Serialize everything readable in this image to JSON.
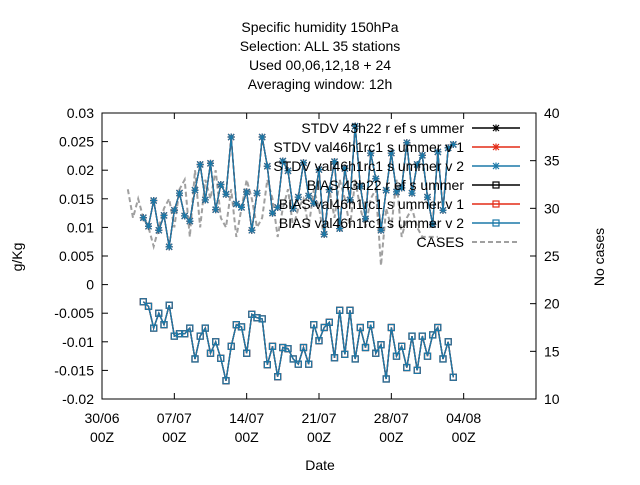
{
  "chart_data": {
    "type": "line",
    "title_lines": [
      "Specific humidity 150hPa",
      "Selection: ALL     35 stations",
      "Used  00,06,12,18  + 24",
      "Averaging window: 12h"
    ],
    "xlabel": "Date",
    "ylabel": "g/Kg",
    "y2label": "No cases",
    "xlim": [
      0,
      42
    ],
    "ylim": [
      -0.02,
      0.03
    ],
    "y2lim": [
      10,
      40
    ],
    "x_ticks": [
      0,
      7,
      14,
      21,
      28,
      35
    ],
    "x_tick_labels": [
      [
        "30/06",
        "00Z"
      ],
      [
        "07/07",
        "00Z"
      ],
      [
        "14/07",
        "00Z"
      ],
      [
        "21/07",
        "00Z"
      ],
      [
        "28/07",
        "00Z"
      ],
      [
        "04/08",
        "00Z"
      ]
    ],
    "y_ticks": [
      -0.02,
      -0.015,
      -0.01,
      -0.005,
      0,
      0.005,
      0.01,
      0.015,
      0.02,
      0.025,
      0.03
    ],
    "y_tick_labels": [
      "-0.02",
      "-0.015",
      "-0.01",
      "-0.005",
      "0",
      "0.005",
      "0.01",
      "0.015",
      "0.02",
      "0.025",
      "0.03"
    ],
    "y2_ticks": [
      10,
      15,
      20,
      25,
      30,
      35,
      40
    ],
    "y2_tick_labels": [
      "10",
      "15",
      "20",
      "25",
      "30",
      "35",
      "40"
    ],
    "grid": false,
    "legend_position": "top-right",
    "x_step_days": 0.5,
    "series": [
      {
        "name": "STDV 43h22 r ef s ummer",
        "axis": "y",
        "color": "#000000",
        "style": "solid",
        "marker": "star",
        "values": [
          0.0117,
          0.0102,
          0.0147,
          0.0095,
          0.0121,
          0.0066,
          0.013,
          0.016,
          0.012,
          0.0111,
          0.0165,
          0.021,
          0.0148,
          0.0212,
          0.0131,
          0.0175,
          0.0158,
          0.0258,
          0.0141,
          0.0135,
          0.0162,
          0.0095,
          0.016,
          0.0258,
          0.0207,
          0.0125,
          0.0135,
          0.0216,
          0.0199,
          0.0133,
          0.0153,
          0.0213,
          0.0155,
          0.0142,
          0.0201,
          0.0088,
          0.0166,
          0.0215,
          0.0098,
          0.0203,
          0.0148,
          0.0277,
          0.0172,
          0.0115,
          0.023,
          0.0185,
          0.0095,
          0.0165,
          0.023,
          0.0162,
          0.0169,
          0.0248,
          0.016,
          0.021,
          0.0226,
          0.0153,
          0.0105,
          0.0232,
          0.013,
          0.0239,
          0.0245
        ]
      },
      {
        "name": "STDV val46h1rc1 s ummer v 1",
        "axis": "y",
        "color": "#e32b17",
        "style": "solid",
        "marker": "star",
        "values": [
          0.0117,
          0.0102,
          0.0147,
          0.0095,
          0.0121,
          0.0066,
          0.013,
          0.016,
          0.012,
          0.0111,
          0.0165,
          0.021,
          0.0148,
          0.0212,
          0.0131,
          0.0175,
          0.0158,
          0.0258,
          0.0141,
          0.0135,
          0.0162,
          0.0095,
          0.016,
          0.0258,
          0.0207,
          0.0125,
          0.0135,
          0.0216,
          0.0199,
          0.0133,
          0.0153,
          0.0213,
          0.0155,
          0.0142,
          0.0201,
          0.0088,
          0.0166,
          0.0215,
          0.0098,
          0.0203,
          0.0148,
          0.0277,
          0.0172,
          0.0115,
          0.023,
          0.0185,
          0.0095,
          0.0165,
          0.023,
          0.0162,
          0.0169,
          0.0248,
          0.016,
          0.021,
          0.0226,
          0.0153,
          0.0105,
          0.0232,
          0.013,
          0.0239,
          0.0245
        ]
      },
      {
        "name": "STDV val46h1rc1 s ummer v 2",
        "axis": "y",
        "color": "#1b79a8",
        "style": "solid",
        "marker": "star",
        "values": [
          0.0117,
          0.0102,
          0.0147,
          0.0095,
          0.0121,
          0.0066,
          0.013,
          0.016,
          0.012,
          0.0111,
          0.0165,
          0.021,
          0.0148,
          0.0212,
          0.0131,
          0.0175,
          0.0158,
          0.0258,
          0.0141,
          0.0135,
          0.0162,
          0.0095,
          0.016,
          0.0258,
          0.0207,
          0.0125,
          0.0135,
          0.0216,
          0.0199,
          0.0133,
          0.0153,
          0.0213,
          0.0155,
          0.0142,
          0.0201,
          0.0088,
          0.0166,
          0.0215,
          0.0098,
          0.0203,
          0.0148,
          0.0277,
          0.0172,
          0.0115,
          0.023,
          0.0185,
          0.0095,
          0.0165,
          0.023,
          0.0162,
          0.0169,
          0.0248,
          0.016,
          0.021,
          0.0226,
          0.0153,
          0.0105,
          0.0232,
          0.013,
          0.0239,
          0.0245
        ]
      },
      {
        "name": "BIAS 43h22 r ef s ummer",
        "axis": "y",
        "color": "#000000",
        "style": "solid",
        "marker": "square",
        "values": [
          -0.003,
          -0.0038,
          -0.0076,
          -0.005,
          -0.007,
          -0.0036,
          -0.009,
          -0.0086,
          -0.0086,
          -0.0076,
          -0.013,
          -0.009,
          -0.0076,
          -0.012,
          -0.01,
          -0.0129,
          -0.0168,
          -0.0108,
          -0.007,
          -0.0074,
          -0.012,
          -0.0052,
          -0.0058,
          -0.006,
          -0.014,
          -0.0108,
          -0.0161,
          -0.011,
          -0.0112,
          -0.013,
          -0.0139,
          -0.011,
          -0.0139,
          -0.007,
          -0.0098,
          -0.0075,
          -0.0066,
          -0.0128,
          -0.0045,
          -0.0122,
          -0.0045,
          -0.013,
          -0.0075,
          -0.011,
          -0.007,
          -0.012,
          -0.0105,
          -0.0165,
          -0.0075,
          -0.0125,
          -0.0108,
          -0.0145,
          -0.009,
          -0.015,
          -0.009,
          -0.0125,
          -0.0088,
          -0.0075,
          -0.013,
          -0.01,
          -0.0162
        ]
      },
      {
        "name": "BIAS val46h1rc1 s ummer v 1",
        "axis": "y",
        "color": "#e32b17",
        "style": "solid",
        "marker": "square",
        "values": [
          -0.003,
          -0.0038,
          -0.0076,
          -0.005,
          -0.007,
          -0.0036,
          -0.009,
          -0.0086,
          -0.0086,
          -0.0076,
          -0.013,
          -0.009,
          -0.0076,
          -0.012,
          -0.01,
          -0.0129,
          -0.0168,
          -0.0108,
          -0.007,
          -0.0074,
          -0.012,
          -0.0052,
          -0.0058,
          -0.006,
          -0.014,
          -0.0108,
          -0.0161,
          -0.011,
          -0.0112,
          -0.013,
          -0.0139,
          -0.011,
          -0.0139,
          -0.007,
          -0.0098,
          -0.0075,
          -0.0066,
          -0.0128,
          -0.0045,
          -0.0122,
          -0.0045,
          -0.013,
          -0.0075,
          -0.011,
          -0.007,
          -0.012,
          -0.0105,
          -0.0165,
          -0.0075,
          -0.0125,
          -0.0108,
          -0.0145,
          -0.009,
          -0.015,
          -0.009,
          -0.0125,
          -0.0088,
          -0.0075,
          -0.013,
          -0.01,
          -0.0162
        ]
      },
      {
        "name": "BIAS val46h1rc1 s ummer v 2",
        "axis": "y",
        "color": "#1b79a8",
        "style": "solid",
        "marker": "square",
        "values": [
          -0.003,
          -0.0038,
          -0.0076,
          -0.005,
          -0.007,
          -0.0036,
          -0.009,
          -0.0086,
          -0.0086,
          -0.0076,
          -0.013,
          -0.009,
          -0.0076,
          -0.012,
          -0.01,
          -0.0129,
          -0.0168,
          -0.0108,
          -0.007,
          -0.0074,
          -0.012,
          -0.0052,
          -0.0058,
          -0.006,
          -0.014,
          -0.0108,
          -0.0161,
          -0.011,
          -0.0112,
          -0.013,
          -0.0139,
          -0.011,
          -0.0139,
          -0.007,
          -0.0098,
          -0.0075,
          -0.0066,
          -0.0128,
          -0.0045,
          -0.0122,
          -0.0045,
          -0.013,
          -0.0075,
          -0.011,
          -0.007,
          -0.012,
          -0.0105,
          -0.0165,
          -0.0075,
          -0.0125,
          -0.0108,
          -0.0145,
          -0.009,
          -0.015,
          -0.009,
          -0.0125,
          -0.0088,
          -0.0075,
          -0.013,
          -0.01,
          -0.0162
        ]
      },
      {
        "name": "CASES",
        "axis": "y2",
        "color": "#a0a0a0",
        "style": "dashed",
        "marker": "none",
        "values": [
          32,
          29,
          31,
          29,
          28,
          26,
          28,
          30,
          31,
          28,
          32,
          33,
          27,
          34,
          28,
          33,
          31,
          34,
          29,
          28,
          32,
          27,
          30,
          33,
          31,
          28,
          29,
          33,
          31,
          27,
          30,
          32,
          28,
          30,
          31,
          28,
          32,
          30,
          27,
          32,
          29,
          33,
          31,
          28,
          33,
          30,
          28,
          31,
          32,
          24,
          30,
          28,
          33,
          27,
          29,
          30,
          28,
          27,
          27,
          27,
          27
        ]
      }
    ],
    "legend_entries": [
      "STDV 43h22 r ef s ummer",
      "STDV val46h1rc1 s ummer v 1",
      "STDV val46h1rc1 s ummer v 2",
      "BIAS 43h22 r ef s ummer",
      "BIAS val46h1rc1 s ummer v 1",
      "BIAS val46h1rc1 s ummer v 2",
      "CASES"
    ]
  }
}
